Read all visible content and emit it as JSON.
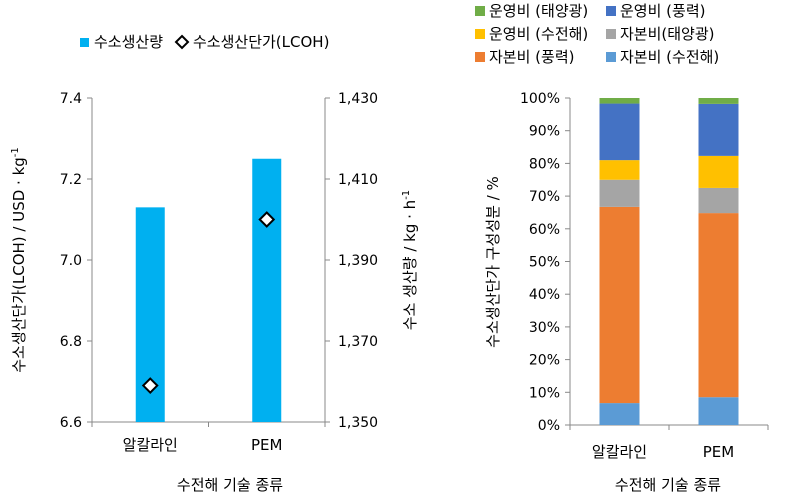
{
  "chart_data": [
    {
      "type": "bar",
      "title": "",
      "categories": [
        "알칼라인",
        "PEM"
      ],
      "xlabel": "수전해 기술 종류",
      "bar_series": {
        "name": "수소생산량",
        "axis": "right",
        "values": [
          1403,
          1415
        ],
        "color": "#00b0f0"
      },
      "marker_series": {
        "name": "수소생산단가(LCOH)",
        "axis": "left",
        "type": "scatter",
        "marker": "diamond",
        "values": [
          6.69,
          7.1
        ],
        "color": "#000000"
      },
      "y_left": {
        "label": "수소생산단가(LCOH) / USD · kg-1",
        "label_main": "수소생산단가(LCOH) / USD · kg",
        "label_sup": "-1",
        "ylim": [
          6.6,
          7.4
        ],
        "ticks": [
          "6.6",
          "6.8",
          "7.0",
          "7.2",
          "7.4"
        ],
        "tick_values": [
          6.6,
          6.8,
          7.0,
          7.2,
          7.4
        ]
      },
      "y_right": {
        "label": "수소 생산량 / kg · h-1",
        "label_main": "수소 생산량 / kg · h",
        "label_sup": "-1",
        "ylim": [
          1350,
          1430
        ],
        "ticks": [
          "1,350",
          "1,370",
          "1,390",
          "1,410",
          "1,430"
        ],
        "tick_values": [
          1350,
          1370,
          1390,
          1410,
          1430
        ]
      },
      "legend_position": "top",
      "grid": false
    },
    {
      "type": "bar",
      "stacked": true,
      "title": "",
      "categories": [
        "알칼라인",
        "PEM"
      ],
      "xlabel": "수전해 기술 종류",
      "ylabel": "수소생산단가 구성성분 / %",
      "ylim": [
        0,
        100
      ],
      "ticks": [
        "0%",
        "10%",
        "20%",
        "30%",
        "40%",
        "50%",
        "60%",
        "70%",
        "80%",
        "90%",
        "100%"
      ],
      "tick_values": [
        0,
        10,
        20,
        30,
        40,
        50,
        60,
        70,
        80,
        90,
        100
      ],
      "legend_position": "top",
      "grid": false,
      "series": [
        {
          "name": "자본비 (수전해)",
          "color": "#5b9bd5",
          "values": [
            6.7,
            8.5
          ]
        },
        {
          "name": "자본비 (풍력)",
          "color": "#ed7d31",
          "values": [
            60.0,
            56.3
          ]
        },
        {
          "name": "자본비(태양광)",
          "color": "#a5a5a5",
          "values": [
            8.3,
            7.7
          ]
        },
        {
          "name": "운영비 (수전해)",
          "color": "#ffc000",
          "values": [
            6.0,
            9.8
          ]
        },
        {
          "name": "운영비 (풍력)",
          "color": "#4472c4",
          "values": [
            17.3,
            15.9
          ]
        },
        {
          "name": "운영비 (태양광)",
          "color": "#70ad47",
          "values": [
            1.7,
            1.8
          ]
        }
      ],
      "legend_order": [
        5,
        4,
        3,
        2,
        1,
        0
      ]
    }
  ]
}
